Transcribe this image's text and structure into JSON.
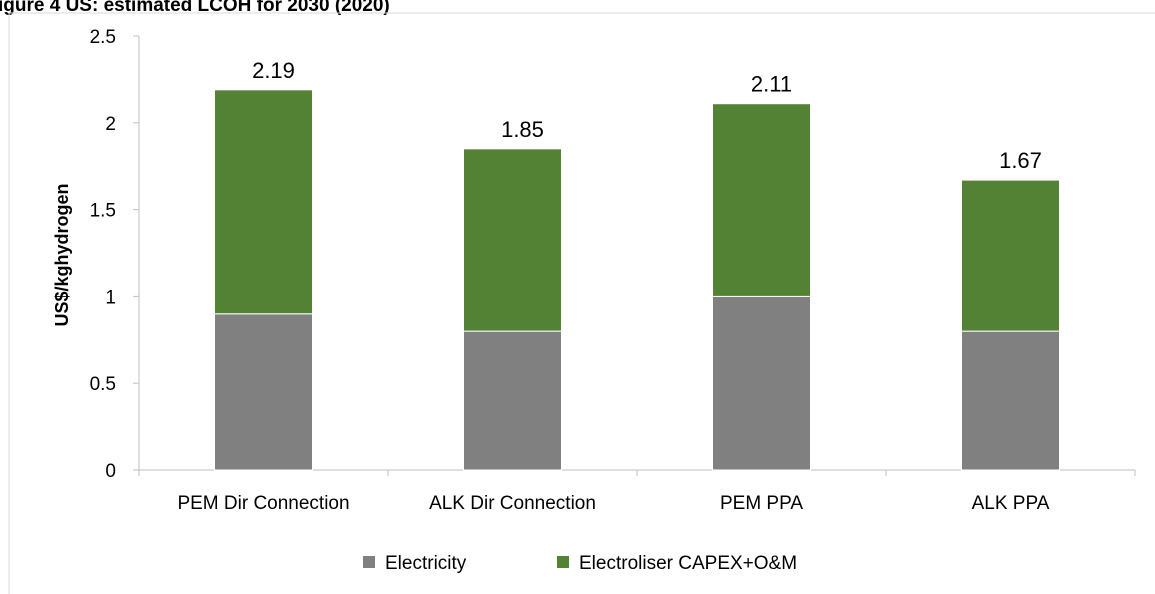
{
  "header": {
    "cut_title": "igure 4 US: estimated LCOH for 2030 (2020)"
  },
  "chart_data": {
    "type": "bar",
    "stacked": true,
    "categories": [
      "PEM Dir Connection",
      "ALK Dir Connection",
      "PEM PPA",
      "ALK PPA"
    ],
    "series": [
      {
        "name": "Electricity",
        "color": "#808080",
        "values": [
          0.9,
          0.8,
          1.0,
          0.8
        ]
      },
      {
        "name": "Electroliser CAPEX+O&M",
        "color": "#548235",
        "values": [
          1.29,
          1.05,
          1.11,
          0.87
        ]
      }
    ],
    "totals": [
      2.19,
      1.85,
      2.11,
      1.67
    ],
    "total_labels": [
      "2.19",
      "1.85",
      "2.11",
      "1.67"
    ],
    "ylabel": "US$/kghydrogen",
    "xlabel": "",
    "ylim": [
      0,
      2.5
    ],
    "yticks": [
      0,
      0.5,
      1,
      1.5,
      2,
      2.5
    ],
    "ytick_labels": [
      "0",
      "0.5",
      "1",
      "1.5",
      "2",
      "2.5"
    ],
    "grid": false,
    "legend_position": "bottom"
  }
}
